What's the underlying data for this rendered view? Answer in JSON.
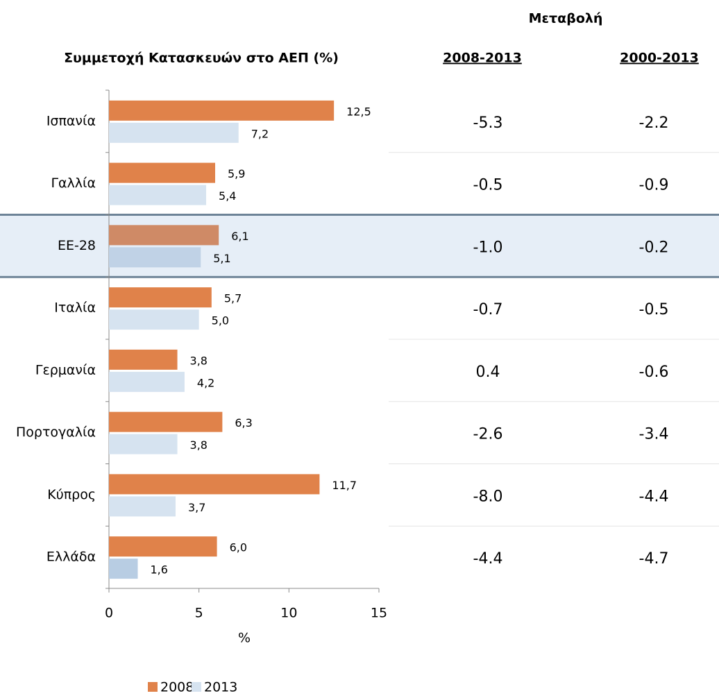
{
  "chart_data": {
    "type": "bar",
    "orientation": "horizontal",
    "title": "Συμμετοχή Κατασκευών στο ΑΕΠ (%)",
    "xlabel": "%",
    "categories": [
      "Ισπανία",
      "Γαλλία",
      "ΕΕ-28",
      "Ιταλία",
      "Γερμανία",
      "Πορτογαλία",
      "Κύπρος",
      "Ελλάδα"
    ],
    "series": [
      {
        "name": "2008",
        "color": "#e0824a",
        "colors": [
          "#e0824a",
          "#e0824a",
          "#cf8a66",
          "#e0824a",
          "#e0824a",
          "#e0824a",
          "#e0824a",
          "#e0824a"
        ],
        "values": [
          12.5,
          5.9,
          6.1,
          5.7,
          3.8,
          6.3,
          11.7,
          6.0
        ],
        "value_labels": [
          "12,5",
          "5,9",
          "6,1",
          "5,7",
          "3,8",
          "6,3",
          "11,7",
          "6,0"
        ]
      },
      {
        "name": "2013",
        "color": "#d6e3f0",
        "colors": [
          "#d6e3f0",
          "#d6e3f0",
          "#c0d2e6",
          "#d6e3f0",
          "#d6e3f0",
          "#d6e3f0",
          "#d6e3f0",
          "#b8cde3"
        ],
        "values": [
          7.2,
          5.4,
          5.1,
          5.0,
          4.2,
          3.8,
          3.7,
          1.6
        ],
        "value_labels": [
          "7,2",
          "5,4",
          "5,1",
          "5,0",
          "4,2",
          "3,8",
          "3,7",
          "1,6"
        ]
      }
    ],
    "xlim": [
      0,
      15
    ],
    "xticks": [
      0,
      5,
      10,
      15
    ],
    "highlight": [
      2
    ],
    "highlight_color": "#e6eef7",
    "legend": "bottom"
  },
  "table": {
    "title": "Μεταβολή",
    "columns": [
      "2008-2013",
      "2000-2013"
    ],
    "rows": [
      [
        "-5.3",
        "-2.2"
      ],
      [
        "-0.5",
        "-0.9"
      ],
      [
        "-1.0",
        "-0.2"
      ],
      [
        "-0.7",
        "-0.5"
      ],
      [
        "0.4",
        "-0.6"
      ],
      [
        "-2.6",
        "-3.4"
      ],
      [
        "-8.0",
        "-4.4"
      ],
      [
        "-4.4",
        "-4.7"
      ]
    ]
  }
}
